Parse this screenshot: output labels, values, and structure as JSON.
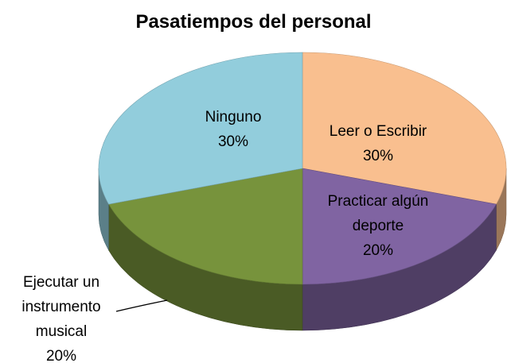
{
  "chart_data": {
    "type": "pie",
    "title": "Pasatiempos del personal",
    "categories": [
      "Leer o Escribir",
      "Practicar algún deporte",
      "Ejecutar un instrumento musical",
      "Ninguno"
    ],
    "values": [
      30,
      20,
      20,
      30
    ],
    "value_labels": [
      "30%",
      "20%",
      "20%",
      "30%"
    ],
    "colors": [
      "#f9bf8f",
      "#8064a2",
      "#77933c",
      "#92cddc"
    ]
  }
}
